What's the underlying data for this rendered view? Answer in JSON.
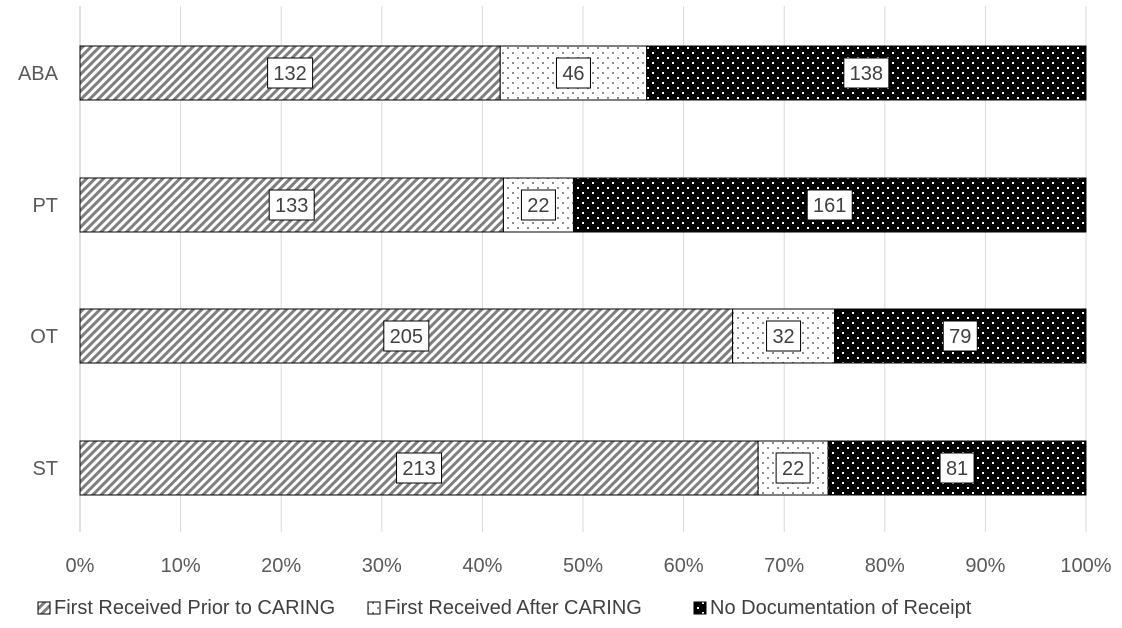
{
  "chart_data": {
    "type": "bar",
    "orientation": "horizontal",
    "stacked": "percent",
    "categories": [
      "ABA",
      "PT",
      "OT",
      "ST"
    ],
    "series": [
      {
        "name": "First Received Prior to CARING",
        "values": [
          132,
          133,
          205,
          213
        ],
        "pattern": "diagonal-hatch",
        "color": "#7f7f7f"
      },
      {
        "name": "First Received After CARING",
        "values": [
          46,
          22,
          32,
          22
        ],
        "pattern": "sparse-dots",
        "color": "#ffffff"
      },
      {
        "name": "No Documentation of Receipt",
        "values": [
          138,
          161,
          79,
          81
        ],
        "pattern": "dots-on-black",
        "color": "#000000"
      }
    ],
    "x_ticks": [
      "0%",
      "10%",
      "20%",
      "30%",
      "40%",
      "50%",
      "60%",
      "70%",
      "80%",
      "90%",
      "100%"
    ],
    "xlim": [
      0,
      100
    ],
    "grid": true,
    "legend_position": "bottom",
    "title": "",
    "xlabel": "",
    "ylabel": ""
  }
}
